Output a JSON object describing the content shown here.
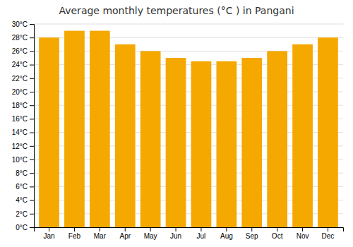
{
  "chart_data": {
    "type": "bar",
    "title": "Average monthly temperatures (°C ) in Pangani",
    "categories": [
      "Jan",
      "Feb",
      "Mar",
      "Apr",
      "May",
      "Jun",
      "Jul",
      "Aug",
      "Sep",
      "Oct",
      "Nov",
      "Dec"
    ],
    "values": [
      28.0,
      29.0,
      29.0,
      27.0,
      26.0,
      25.0,
      24.5,
      24.5,
      25.0,
      26.0,
      27.0,
      28.0
    ],
    "color": "#F5A800",
    "ylim": [
      0,
      30
    ],
    "yticks": [
      {
        "value": 0,
        "label": "0°C"
      },
      {
        "value": 2,
        "label": "2°C"
      },
      {
        "value": 4,
        "label": "4°C"
      },
      {
        "value": 6,
        "label": "6°C"
      },
      {
        "value": 8,
        "label": "8°C"
      },
      {
        "value": 10,
        "label": "10°C"
      },
      {
        "value": 12,
        "label": "12°C"
      },
      {
        "value": 14,
        "label": "14°C"
      },
      {
        "value": 16,
        "label": "16°C"
      },
      {
        "value": 18,
        "label": "18°C"
      },
      {
        "value": 20,
        "label": "20°C"
      },
      {
        "value": 22,
        "label": "22°C"
      },
      {
        "value": 24,
        "label": "24°C"
      },
      {
        "value": 26,
        "label": "26°C"
      },
      {
        "value": 28,
        "label": "28°C"
      },
      {
        "value": 30,
        "label": "30°C"
      }
    ],
    "grid": true
  }
}
